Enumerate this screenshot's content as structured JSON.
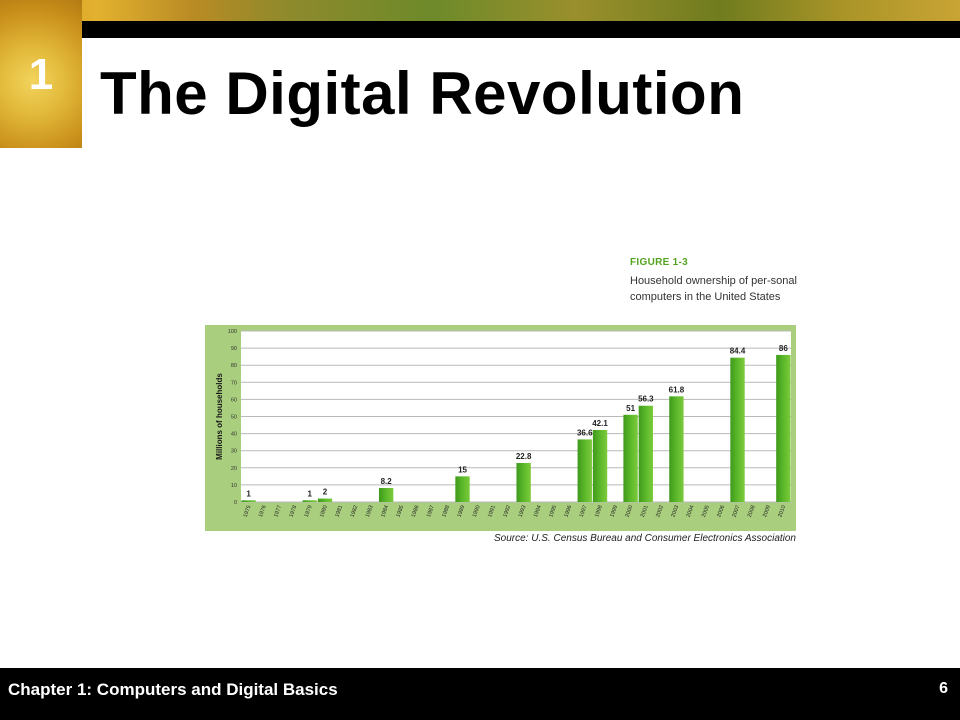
{
  "slide": {
    "chapter_number": "1",
    "title": "The Digital Revolution"
  },
  "figure": {
    "label": "FIGURE 1-3",
    "caption": "Household ownership of per-sonal computers in the United States",
    "source": "Source: U.S. Census Bureau and Consumer Electronics Association"
  },
  "footer": {
    "chapter_title": "Chapter 1: Computers and Digital Basics",
    "page_number": "6"
  },
  "colors": {
    "bar": "#5cb82a",
    "panel": "#a9cf7e",
    "plot": "#ffffff",
    "figure_label": "#55a421"
  },
  "chart_data": {
    "type": "bar",
    "ylabel": "Millions of households",
    "ylim": [
      0,
      100
    ],
    "yticks": [
      0,
      10,
      20,
      30,
      40,
      50,
      60,
      70,
      80,
      90,
      100
    ],
    "grid": true,
    "categories": [
      "1975",
      "1976",
      "1977",
      "1978",
      "1979",
      "1980",
      "1981",
      "1982",
      "1983",
      "1984",
      "1985",
      "1986",
      "1987",
      "1988",
      "1989",
      "1990",
      "1991",
      "1992",
      "1993",
      "1994",
      "1995",
      "1996",
      "1997",
      "1998",
      "1999",
      "2000",
      "2001",
      "2002",
      "2003",
      "2004",
      "2005",
      "2006",
      "2007",
      "2008",
      "2009",
      "2010"
    ],
    "values": [
      1,
      null,
      null,
      null,
      1,
      2,
      null,
      null,
      null,
      8.2,
      null,
      null,
      null,
      null,
      15,
      null,
      null,
      null,
      22.8,
      null,
      null,
      null,
      36.6,
      42.1,
      null,
      51,
      56.3,
      null,
      61.8,
      null,
      null,
      null,
      84.4,
      null,
      null,
      86
    ],
    "data_labels": [
      "1",
      "",
      "",
      "",
      "1",
      "2",
      "",
      "",
      "",
      "8.2",
      "",
      "",
      "",
      "",
      "15",
      "",
      "",
      "",
      "22.8",
      "",
      "",
      "",
      "36.6",
      "42.1",
      "",
      "51",
      "56.3",
      "",
      "61.8",
      "",
      "",
      "",
      "84.4",
      "",
      "",
      "86"
    ]
  }
}
